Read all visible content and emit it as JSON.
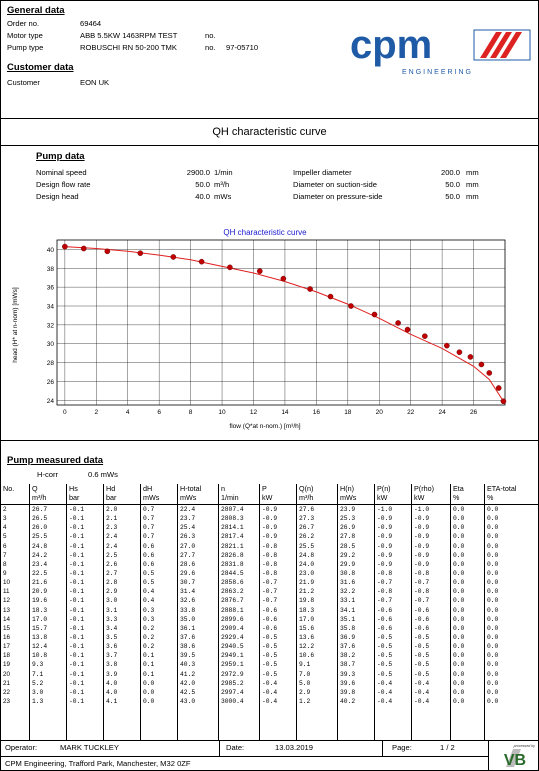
{
  "general": {
    "title": "General data",
    "order_label": "Order no.",
    "order_value": "69464",
    "motor_label": "Motor type",
    "motor_value": "ABB 5.5KW 1463RPM TEST",
    "motor_no_label": "no.",
    "pump_label": "Pump type",
    "pump_value": "ROBUSCHI RN 50-200 TMK",
    "pump_no_label": "no.",
    "pump_no_value": "97-05710"
  },
  "customer": {
    "title": "Customer data",
    "label": "Customer",
    "value": "EON UK"
  },
  "logo": {
    "text": "cpm",
    "subtext": "ENGINEERING"
  },
  "page_title": "QH characteristic curve",
  "pump_data": {
    "title": "Pump data",
    "rows": [
      {
        "label": "Nominal speed",
        "value": "2900.0",
        "unit": "1/min",
        "label2": "Impeller diameter",
        "value2": "200.0",
        "unit2": "mm"
      },
      {
        "label": "Design flow rate",
        "value": "50.0",
        "unit": "m³/h",
        "label2": "Diameter on suction-side",
        "value2": "50.0",
        "unit2": "mm"
      },
      {
        "label": "Design head",
        "value": "40.0",
        "unit": "mWs",
        "label2": "Diameter on pressure-side",
        "value2": "50.0",
        "unit2": "mm"
      }
    ]
  },
  "chart_data": {
    "type": "scatter",
    "title": "QH characteristic curve",
    "xlabel": "flow (Q*at n-nom.) [m³/h]",
    "ylabel": "head (H* at n-nom) [mWs]",
    "xlim": [
      -0.5,
      28
    ],
    "ylim": [
      23.5,
      41
    ],
    "xticks": [
      0,
      2,
      4,
      6,
      8,
      10,
      12,
      14,
      16,
      18,
      20,
      22,
      24,
      26
    ],
    "yticks": [
      24,
      26,
      28,
      30,
      32,
      34,
      36,
      38,
      40
    ],
    "grid": true,
    "series": [
      {
        "name": "",
        "x": [
          0,
          1.2,
          2.7,
          4.8,
          6.9,
          8.7,
          10.5,
          12.4,
          13.9,
          15.6,
          16.9,
          18.2,
          19.7,
          21.2,
          21.8,
          22.9,
          24.3,
          25.1,
          25.8,
          26.5,
          27.0,
          27.6,
          27.9
        ],
        "y": [
          40.3,
          40.1,
          39.8,
          39.6,
          39.2,
          38.7,
          38.1,
          37.7,
          36.9,
          35.8,
          35.0,
          34.0,
          33.1,
          32.2,
          31.5,
          30.8,
          29.8,
          29.1,
          28.6,
          27.8,
          26.9,
          25.3,
          23.9
        ]
      }
    ],
    "fit_curve": {
      "x": [
        0,
        2,
        4,
        6,
        8,
        10,
        12,
        14,
        16,
        18,
        20,
        22,
        24,
        26,
        27,
        27.9
      ],
      "y": [
        40.3,
        40.1,
        39.8,
        39.4,
        38.9,
        38.2,
        37.5,
        36.6,
        35.5,
        34.2,
        32.7,
        31.0,
        29.5,
        27.6,
        26.2,
        23.9
      ]
    },
    "curve_color": "#e02020",
    "point_color": "#c00000"
  },
  "measured": {
    "title": "Pump measured data",
    "hcorr_label": "H-corr",
    "hcorr_value": "0.6  mWs",
    "columns": [
      {
        "top": "No.",
        "bot": ""
      },
      {
        "top": "Q",
        "bot": "m³/h"
      },
      {
        "top": "Hs",
        "bot": "bar"
      },
      {
        "top": "Hd",
        "bot": "bar"
      },
      {
        "top": "dH",
        "bot": "mWs"
      },
      {
        "top": "H-total",
        "bot": "mWs"
      },
      {
        "top": "n",
        "bot": "1/min"
      },
      {
        "top": "P",
        "bot": "kW"
      },
      {
        "top": "Q(n)",
        "bot": "m³/h"
      },
      {
        "top": "H(n)",
        "bot": "mWs"
      },
      {
        "top": "P(n)",
        "bot": "kW"
      },
      {
        "top": "P(rho)",
        "bot": "kW"
      },
      {
        "top": "Eta",
        "bot": "%"
      },
      {
        "top": "ETA-total",
        "bot": "%"
      }
    ],
    "rows": [
      [
        "2",
        "26.7",
        "-0.1",
        "2.0",
        "0.7",
        "22.4",
        "2807.4",
        "-0.9",
        "27.6",
        "23.9",
        "-1.0",
        "-1.0",
        "0.0",
        "0.0"
      ],
      [
        "3",
        "26.5",
        "-0.1",
        "2.1",
        "0.7",
        "23.7",
        "2808.3",
        "-0.9",
        "27.3",
        "25.3",
        "-0.9",
        "-0.9",
        "0.0",
        "0.0"
      ],
      [
        "4",
        "26.0",
        "-0.1",
        "2.3",
        "0.7",
        "25.4",
        "2814.1",
        "-0.9",
        "26.7",
        "26.9",
        "-0.9",
        "-0.9",
        "0.0",
        "0.0"
      ],
      [
        "5",
        "25.5",
        "-0.1",
        "2.4",
        "0.7",
        "26.3",
        "2817.4",
        "-0.9",
        "26.2",
        "27.8",
        "-0.9",
        "-0.9",
        "0.0",
        "0.0"
      ],
      [
        "6",
        "24.8",
        "-0.1",
        "2.4",
        "0.6",
        "27.0",
        "2821.1",
        "-0.8",
        "25.5",
        "28.5",
        "-0.9",
        "-0.9",
        "0.0",
        "0.0"
      ],
      [
        "7",
        "24.2",
        "-0.1",
        "2.5",
        "0.6",
        "27.7",
        "2826.8",
        "-0.8",
        "24.8",
        "29.2",
        "-0.9",
        "-0.9",
        "0.0",
        "0.0"
      ],
      [
        "8",
        "23.4",
        "-0.1",
        "2.6",
        "0.6",
        "28.6",
        "2831.8",
        "-0.8",
        "24.0",
        "29.9",
        "-0.9",
        "-0.9",
        "0.0",
        "0.0"
      ],
      [
        "9",
        "22.5",
        "-0.1",
        "2.7",
        "0.5",
        "29.6",
        "2844.5",
        "-0.8",
        "23.0",
        "30.8",
        "-0.8",
        "-0.8",
        "0.0",
        "0.0"
      ],
      [
        "10",
        "21.6",
        "-0.1",
        "2.8",
        "0.5",
        "30.7",
        "2858.6",
        "-0.7",
        "21.9",
        "31.6",
        "-0.7",
        "-0.7",
        "0.0",
        "0.0"
      ],
      [
        "11",
        "20.9",
        "-0.1",
        "2.9",
        "0.4",
        "31.4",
        "2863.2",
        "-0.7",
        "21.2",
        "32.2",
        "-0.8",
        "-0.8",
        "0.0",
        "0.0"
      ],
      [
        "12",
        "19.6",
        "-0.1",
        "3.0",
        "0.4",
        "32.6",
        "2876.7",
        "-0.7",
        "19.8",
        "33.1",
        "-0.7",
        "-0.7",
        "0.0",
        "0.0"
      ],
      [
        "13",
        "18.3",
        "-0.1",
        "3.1",
        "0.3",
        "33.8",
        "2888.1",
        "-0.6",
        "18.3",
        "34.1",
        "-0.6",
        "-0.6",
        "0.0",
        "0.0"
      ],
      [
        "14",
        "17.0",
        "-0.1",
        "3.3",
        "0.3",
        "35.0",
        "2899.6",
        "-0.6",
        "17.0",
        "35.1",
        "-0.6",
        "-0.6",
        "0.0",
        "0.0"
      ],
      [
        "15",
        "15.7",
        "-0.1",
        "3.4",
        "0.2",
        "36.1",
        "2909.4",
        "-0.6",
        "15.6",
        "35.8",
        "-0.6",
        "-0.6",
        "0.0",
        "0.0"
      ],
      [
        "16",
        "13.8",
        "-0.1",
        "3.5",
        "0.2",
        "37.6",
        "2929.4",
        "-0.5",
        "13.6",
        "36.9",
        "-0.5",
        "-0.5",
        "0.0",
        "0.0"
      ],
      [
        "17",
        "12.4",
        "-0.1",
        "3.6",
        "0.2",
        "38.6",
        "2940.5",
        "-0.5",
        "12.2",
        "37.6",
        "-0.5",
        "-0.5",
        "0.0",
        "0.0"
      ],
      [
        "18",
        "10.8",
        "-0.1",
        "3.7",
        "0.1",
        "39.5",
        "2949.1",
        "-0.5",
        "10.6",
        "38.2",
        "-0.5",
        "-0.5",
        "0.0",
        "0.0"
      ],
      [
        "19",
        "9.3",
        "-0.1",
        "3.8",
        "0.1",
        "40.3",
        "2959.1",
        "-0.5",
        "9.1",
        "38.7",
        "-0.5",
        "-0.5",
        "0.0",
        "0.0"
      ],
      [
        "20",
        "7.1",
        "-0.1",
        "3.9",
        "0.1",
        "41.2",
        "2972.9",
        "-0.5",
        "7.0",
        "39.3",
        "-0.5",
        "-0.5",
        "0.0",
        "0.0"
      ],
      [
        "21",
        "5.2",
        "-0.1",
        "4.0",
        "0.0",
        "42.0",
        "2985.2",
        "-0.4",
        "5.0",
        "39.6",
        "-0.4",
        "-0.4",
        "0.0",
        "0.0"
      ],
      [
        "22",
        "3.0",
        "-0.1",
        "4.0",
        "0.0",
        "42.5",
        "2997.4",
        "-0.4",
        "2.9",
        "39.8",
        "-0.4",
        "-0.4",
        "0.0",
        "0.0"
      ],
      [
        "23",
        "1.3",
        "-0.1",
        "4.1",
        "0.0",
        "43.0",
        "3000.4",
        "-0.4",
        "1.2",
        "40.2",
        "-0.4",
        "-0.4",
        "0.0",
        "0.0"
      ]
    ]
  },
  "footer": {
    "operator_label": "Operator:",
    "operator_value": "MARK TUCKLEY",
    "date_label": "Date:",
    "date_value": "13.03.2019",
    "page_label": "Page:",
    "page_value": "1 / 2",
    "address": "CPM Engineering,  Trafford Park,   Manchester, M32 0ZF",
    "badge_small": "processed by",
    "badge_main": "VB"
  }
}
